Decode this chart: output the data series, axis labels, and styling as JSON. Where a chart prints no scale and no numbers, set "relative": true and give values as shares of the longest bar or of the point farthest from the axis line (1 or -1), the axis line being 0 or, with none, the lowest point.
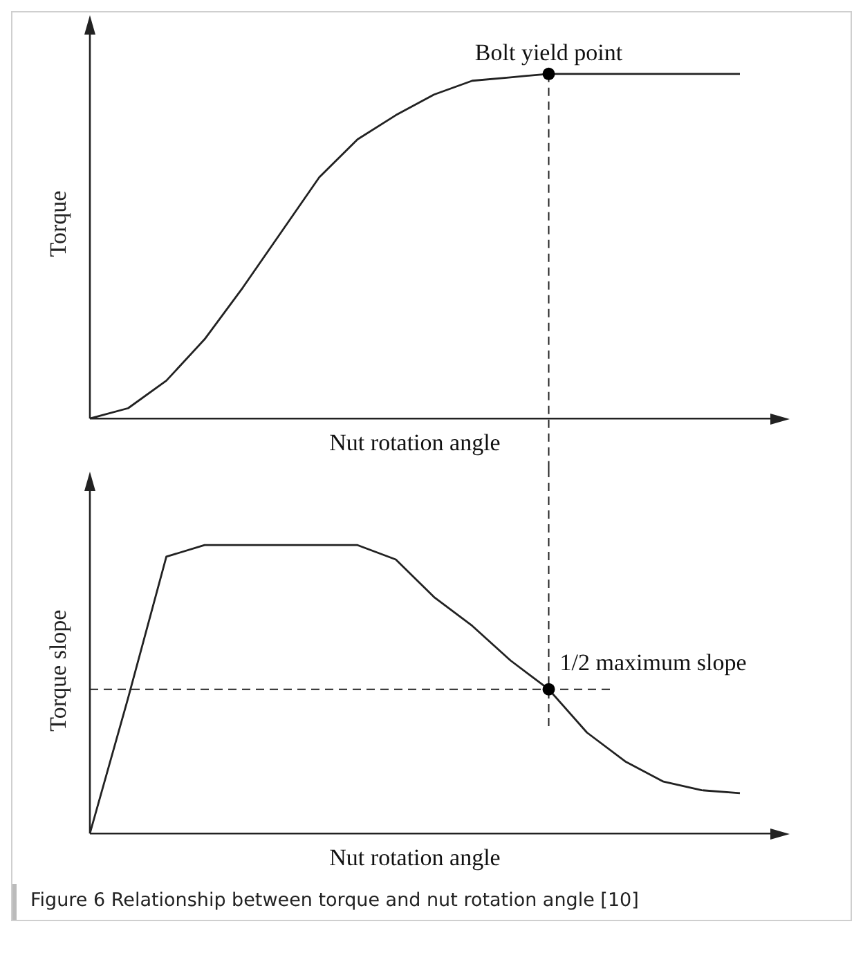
{
  "chart_data": [
    {
      "type": "line",
      "relative": true,
      "tick_labels": false,
      "grid": false,
      "legend": false,
      "marker": "none",
      "line_style": "solid",
      "xlabel": "Nut rotation angle",
      "ylabel": "Torque",
      "categories": [
        null,
        null,
        null,
        null,
        null,
        null,
        null,
        null,
        null,
        null,
        null,
        null,
        null,
        null,
        null,
        null,
        null,
        null
      ],
      "series": [
        {
          "color": "#222222",
          "values": [
            0,
            0.03,
            0.11,
            0.23,
            0.38,
            0.54,
            0.7,
            0.81,
            0.88,
            0.94,
            0.98,
            0.99,
            1,
            1,
            1,
            1,
            1,
            1
          ]
        }
      ],
      "annotations": [
        "Bolt yield point"
      ]
    },
    {
      "type": "line",
      "relative": true,
      "tick_labels": false,
      "grid": false,
      "legend": false,
      "marker": "none",
      "line_style": "solid",
      "xlabel": "Nut rotation angle",
      "ylabel": "Torque slope",
      "categories": [
        null,
        null,
        null,
        null,
        null,
        null,
        null,
        null,
        null,
        null,
        null,
        null,
        null,
        null,
        null,
        null,
        null,
        null
      ],
      "series": [
        {
          "color": "#222222",
          "values": [
            0,
            0.47,
            0.96,
            1,
            1,
            1,
            1,
            1,
            0.95,
            0.82,
            0.72,
            0.6,
            0.5,
            0.35,
            0.25,
            0.18,
            0.15,
            0.14
          ]
        }
      ],
      "ref_lines": [
        {
          "axis": "y",
          "value": 0.5,
          "line_style": "dashed",
          "color": "#222222"
        }
      ],
      "annotations": [
        "1/2 maximum slope",
        "Figure 6  Relationship between torque and nut rotation angle [10]"
      ]
    }
  ]
}
